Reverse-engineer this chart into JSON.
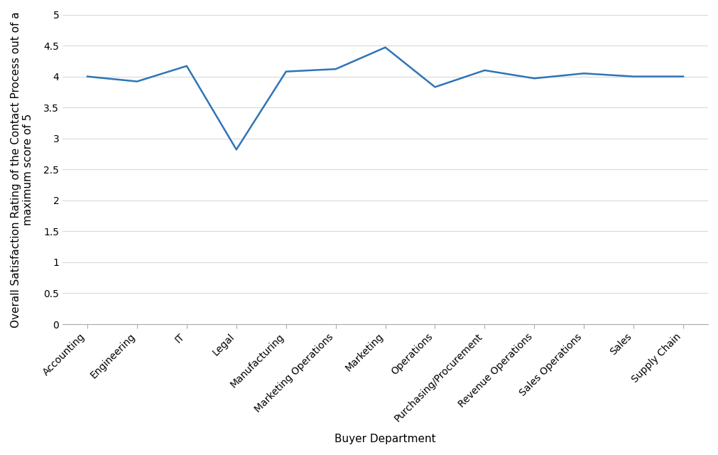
{
  "categories": [
    "Accounting",
    "Engineering",
    "IT",
    "Legal",
    "Manufacturing",
    "Marketing Operations",
    "Marketing",
    "Operations",
    "Purchasing/Procurement",
    "Revenue Operations",
    "Sales Operations",
    "Sales",
    "Supply Chain"
  ],
  "values": [
    4.0,
    3.92,
    4.17,
    2.82,
    4.08,
    4.12,
    4.47,
    3.83,
    4.1,
    3.97,
    4.05,
    4.0,
    4.0
  ],
  "line_color": "#2E75B6",
  "xlabel": "Buyer Department",
  "ylabel": "Overall Satisfaction Rating of the Contact Process out of a\nmaximum score of 5",
  "ylim": [
    0,
    5
  ],
  "ytick_labels": [
    "0",
    "0.5",
    "1",
    "1.5",
    "2",
    "2.5",
    "3",
    "3.5",
    "4",
    "4.5",
    "5"
  ],
  "ytick_values": [
    0,
    0.5,
    1,
    1.5,
    2,
    2.5,
    3,
    3.5,
    4,
    4.5,
    5
  ],
  "background_color": "#ffffff",
  "grid_color": "#d9d9d9",
  "line_width": 1.8,
  "label_fontsize": 11,
  "tick_fontsize": 10
}
